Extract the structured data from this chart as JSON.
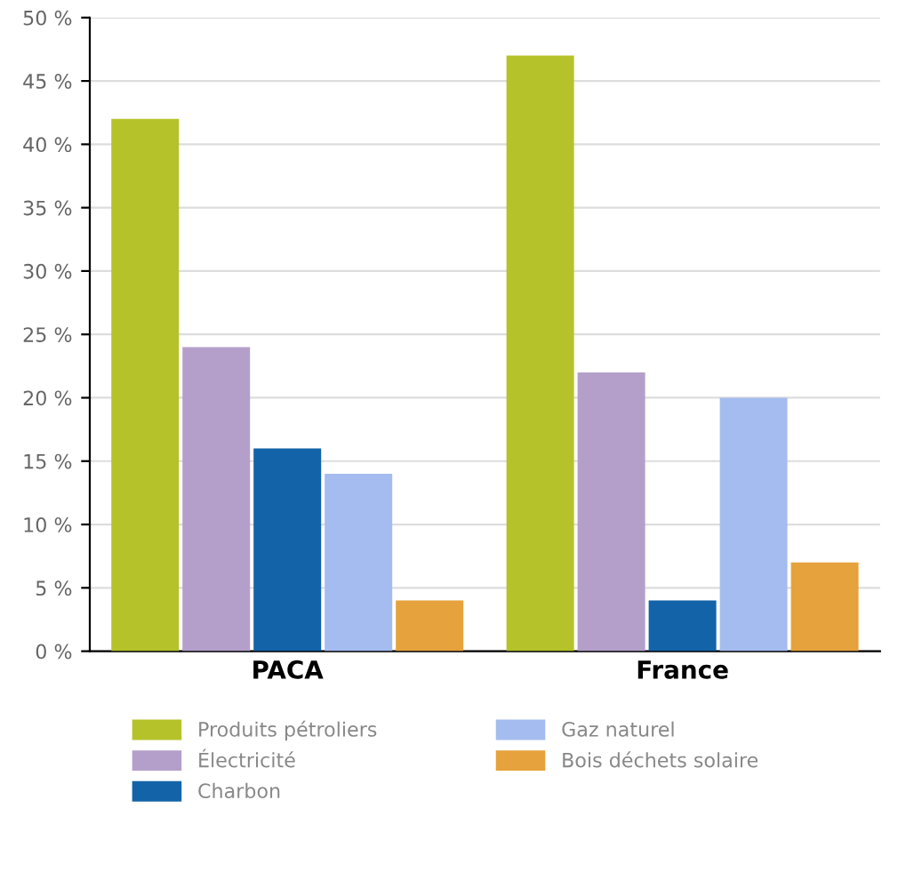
{
  "chart_data": {
    "type": "bar",
    "categories": [
      "PACA",
      "France"
    ],
    "series": [
      {
        "name": "Produits pétroliers",
        "color": "#b5c22a",
        "values": [
          42,
          47
        ]
      },
      {
        "name": "Électricité",
        "color": "#b49fcb",
        "values": [
          24,
          22
        ]
      },
      {
        "name": "Charbon",
        "color": "#1363a8",
        "values": [
          16,
          4
        ]
      },
      {
        "name": "Gaz naturel",
        "color": "#a4bcef",
        "values": [
          14,
          20
        ]
      },
      {
        "name": "Bois déchets solaire",
        "color": "#e6a23c",
        "values": [
          4,
          7
        ]
      }
    ],
    "ylim": [
      0,
      50
    ],
    "yticks": [
      {
        "value": 0,
        "label": "0 %"
      },
      {
        "value": 5,
        "label": "5 %"
      },
      {
        "value": 10,
        "label": "10 %"
      },
      {
        "value": 15,
        "label": "15 %"
      },
      {
        "value": 20,
        "label": "20 %"
      },
      {
        "value": 25,
        "label": "25 %"
      },
      {
        "value": 30,
        "label": "30 %"
      },
      {
        "value": 35,
        "label": "35 %"
      },
      {
        "value": 40,
        "label": "40 %"
      },
      {
        "value": 45,
        "label": "45 %"
      },
      {
        "value": 50,
        "label": "50 %"
      }
    ],
    "grid": "y",
    "legend": "bottom"
  }
}
